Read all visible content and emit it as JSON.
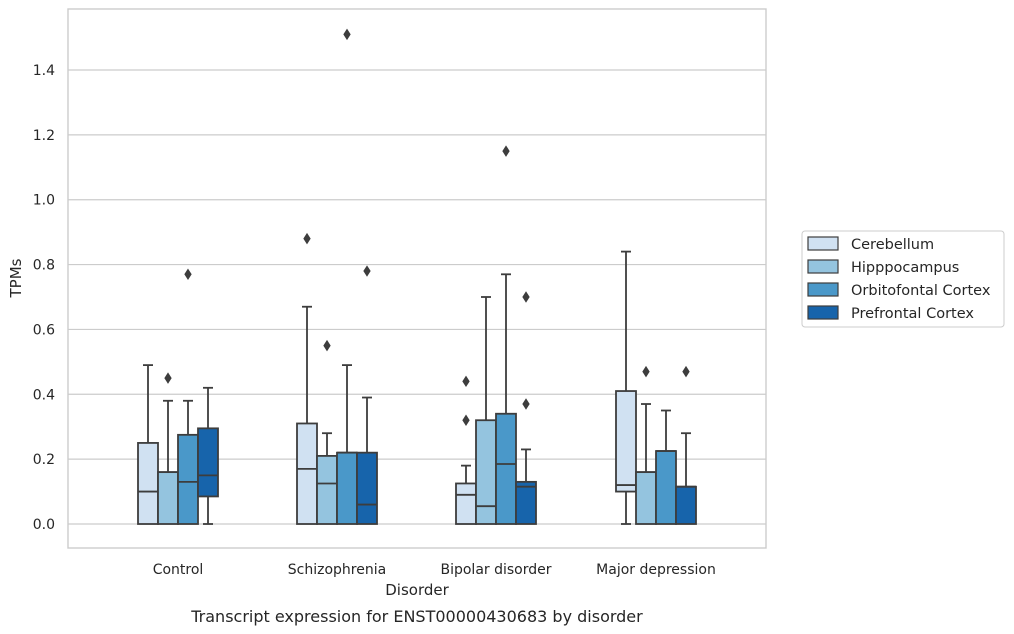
{
  "chart_data": {
    "type": "box",
    "caption": "Transcript expression for ENST00000430683 by disorder",
    "xlabel": "Disorder",
    "ylabel": "TPMs",
    "ylim": [
      -0.07,
      1.6
    ],
    "yticks": [
      "0.0",
      "0.2",
      "0.4",
      "0.6",
      "0.8",
      "1.0",
      "1.2",
      "1.4"
    ],
    "grid": true,
    "legend_position": "right",
    "categories": [
      "Control",
      "Schizophrenia",
      "Bipolar disorder",
      "Major depression"
    ],
    "series": [
      {
        "name": "Cerebellum",
        "color": "#d0e1f2",
        "boxes": [
          {
            "whislo": 0.0,
            "q1": 0.0,
            "med": 0.1,
            "q3": 0.25,
            "whishi": 0.49,
            "fliers": []
          },
          {
            "whislo": 0.0,
            "q1": 0.0,
            "med": 0.17,
            "q3": 0.31,
            "whishi": 0.67,
            "fliers": [
              0.88
            ]
          },
          {
            "whislo": 0.0,
            "q1": 0.0,
            "med": 0.09,
            "q3": 0.125,
            "whishi": 0.18,
            "fliers": [
              0.32,
              0.44
            ]
          },
          {
            "whislo": 0.0,
            "q1": 0.1,
            "med": 0.12,
            "q3": 0.41,
            "whishi": 0.84,
            "fliers": []
          }
        ]
      },
      {
        "name": "Hipppocampus",
        "color": "#94c4df",
        "boxes": [
          {
            "whislo": 0.0,
            "q1": 0.0,
            "med": 0.16,
            "q3": 0.16,
            "whishi": 0.38,
            "fliers": [
              0.45
            ]
          },
          {
            "whislo": 0.0,
            "q1": 0.0,
            "med": 0.125,
            "q3": 0.21,
            "whishi": 0.28,
            "fliers": [
              0.55
            ]
          },
          {
            "whislo": 0.0,
            "q1": 0.0,
            "med": 0.055,
            "q3": 0.32,
            "whishi": 0.7,
            "fliers": []
          },
          {
            "whislo": 0.0,
            "q1": 0.0,
            "med": 0.16,
            "q3": 0.16,
            "whishi": 0.37,
            "fliers": [
              0.47
            ]
          }
        ]
      },
      {
        "name": "Orbitofontal Cortex",
        "color": "#4a98c9",
        "boxes": [
          {
            "whislo": 0.0,
            "q1": 0.0,
            "med": 0.13,
            "q3": 0.275,
            "whishi": 0.38,
            "fliers": [
              0.77
            ]
          },
          {
            "whislo": 0.0,
            "q1": 0.0,
            "med": 0.22,
            "q3": 0.22,
            "whishi": 0.49,
            "fliers": [
              1.51
            ]
          },
          {
            "whislo": 0.0,
            "q1": 0.0,
            "med": 0.185,
            "q3": 0.34,
            "whishi": 0.77,
            "fliers": [
              1.15
            ]
          },
          {
            "whislo": 0.0,
            "q1": 0.0,
            "med": 0.225,
            "q3": 0.225,
            "whishi": 0.35,
            "fliers": []
          }
        ]
      },
      {
        "name": "Prefrontal Cortex",
        "color": "#1764ab",
        "boxes": [
          {
            "whislo": 0.0,
            "q1": 0.085,
            "med": 0.15,
            "q3": 0.295,
            "whishi": 0.42,
            "fliers": []
          },
          {
            "whislo": 0.0,
            "q1": 0.0,
            "med": 0.06,
            "q3": 0.22,
            "whishi": 0.39,
            "fliers": [
              0.78
            ]
          },
          {
            "whislo": 0.0,
            "q1": 0.0,
            "med": 0.115,
            "q3": 0.13,
            "whishi": 0.23,
            "fliers": [
              0.37,
              0.7
            ]
          },
          {
            "whislo": 0.0,
            "q1": 0.0,
            "med": 0.115,
            "q3": 0.115,
            "whishi": 0.28,
            "fliers": [
              0.47
            ]
          }
        ]
      }
    ]
  }
}
